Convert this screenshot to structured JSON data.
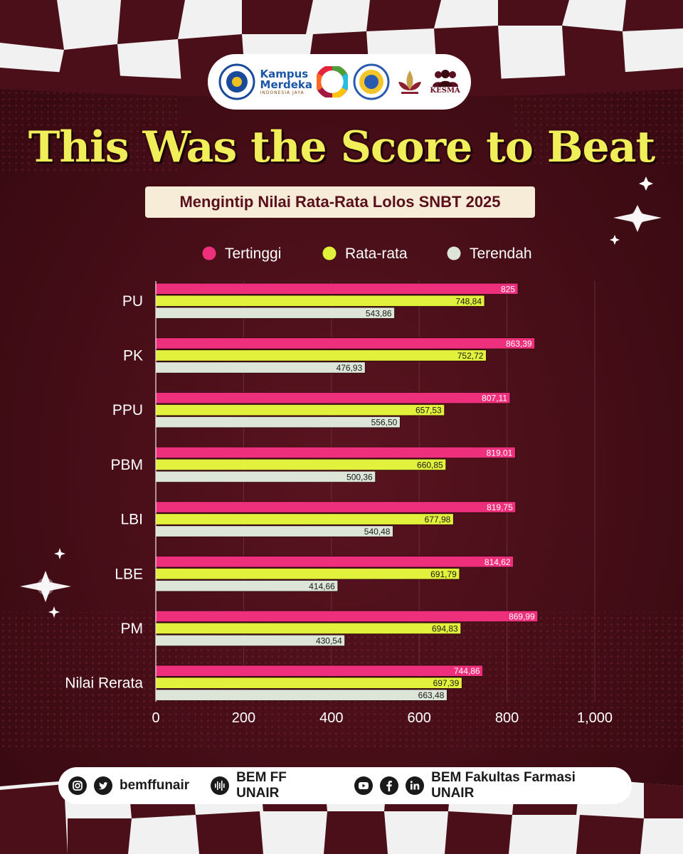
{
  "header": {
    "title": "This Was the Score to Beat",
    "subtitle": "Mengintip Nilai Rata-Rata Lolos SNBT 2025",
    "logos": [
      {
        "name": "unair-seal",
        "color": "#1a4a9a"
      },
      {
        "name": "kampus-merdeka",
        "line1": "Kampus",
        "line2": "Merdeka",
        "sub": "INDONESIA JAYA"
      },
      {
        "name": "sdgs-wheel"
      },
      {
        "name": "bem-ff-seal",
        "color": "#2a5bb0"
      },
      {
        "name": "lotus-emblem",
        "color": "#8a2030"
      },
      {
        "name": "kesma-people",
        "label": "KESMA"
      }
    ]
  },
  "chart_data": {
    "type": "bar",
    "orientation": "horizontal",
    "categories": [
      "PU",
      "PK",
      "PPU",
      "PBM",
      "LBI",
      "LBE",
      "PM",
      "Nilai Rerata"
    ],
    "series": [
      {
        "name": "Tertinggi",
        "color": "#ee2f7c",
        "values": [
          825,
          863.39,
          807.11,
          819.01,
          819.75,
          814.62,
          869.99,
          744.86
        ],
        "labels": [
          "825",
          "863,39",
          "807,11",
          "819,01",
          "819,75",
          "814,62",
          "869,99",
          "744,86"
        ]
      },
      {
        "name": "Rata-rata",
        "color": "#e2f23c",
        "values": [
          748.84,
          752.72,
          657.53,
          660.85,
          677.98,
          691.79,
          694.83,
          697.39
        ],
        "labels": [
          "748,84",
          "752,72",
          "657,53",
          "660,85",
          "677,98",
          "691,79",
          "694,83",
          "697,39"
        ]
      },
      {
        "name": "Terendah",
        "color": "#dde5d8",
        "values": [
          543.86,
          476.93,
          556.5,
          500.36,
          540.48,
          414.66,
          430.54,
          663.48
        ],
        "labels": [
          "543,86",
          "476,93",
          "556,50",
          "500,36",
          "540,48",
          "414,66",
          "430,54",
          "663,48"
        ]
      }
    ],
    "xlim": [
      0,
      1000
    ],
    "xticks": [
      0,
      200,
      400,
      600,
      800,
      1000
    ],
    "xtick_labels": [
      "0",
      "200",
      "400",
      "600",
      "800",
      "1,000"
    ],
    "grid": true,
    "legend": "top-center"
  },
  "footer": {
    "handle": "bemffunair",
    "podcast": "BEM FF UNAIR",
    "org": "BEM Fakultas  Farmasi UNAIR"
  }
}
